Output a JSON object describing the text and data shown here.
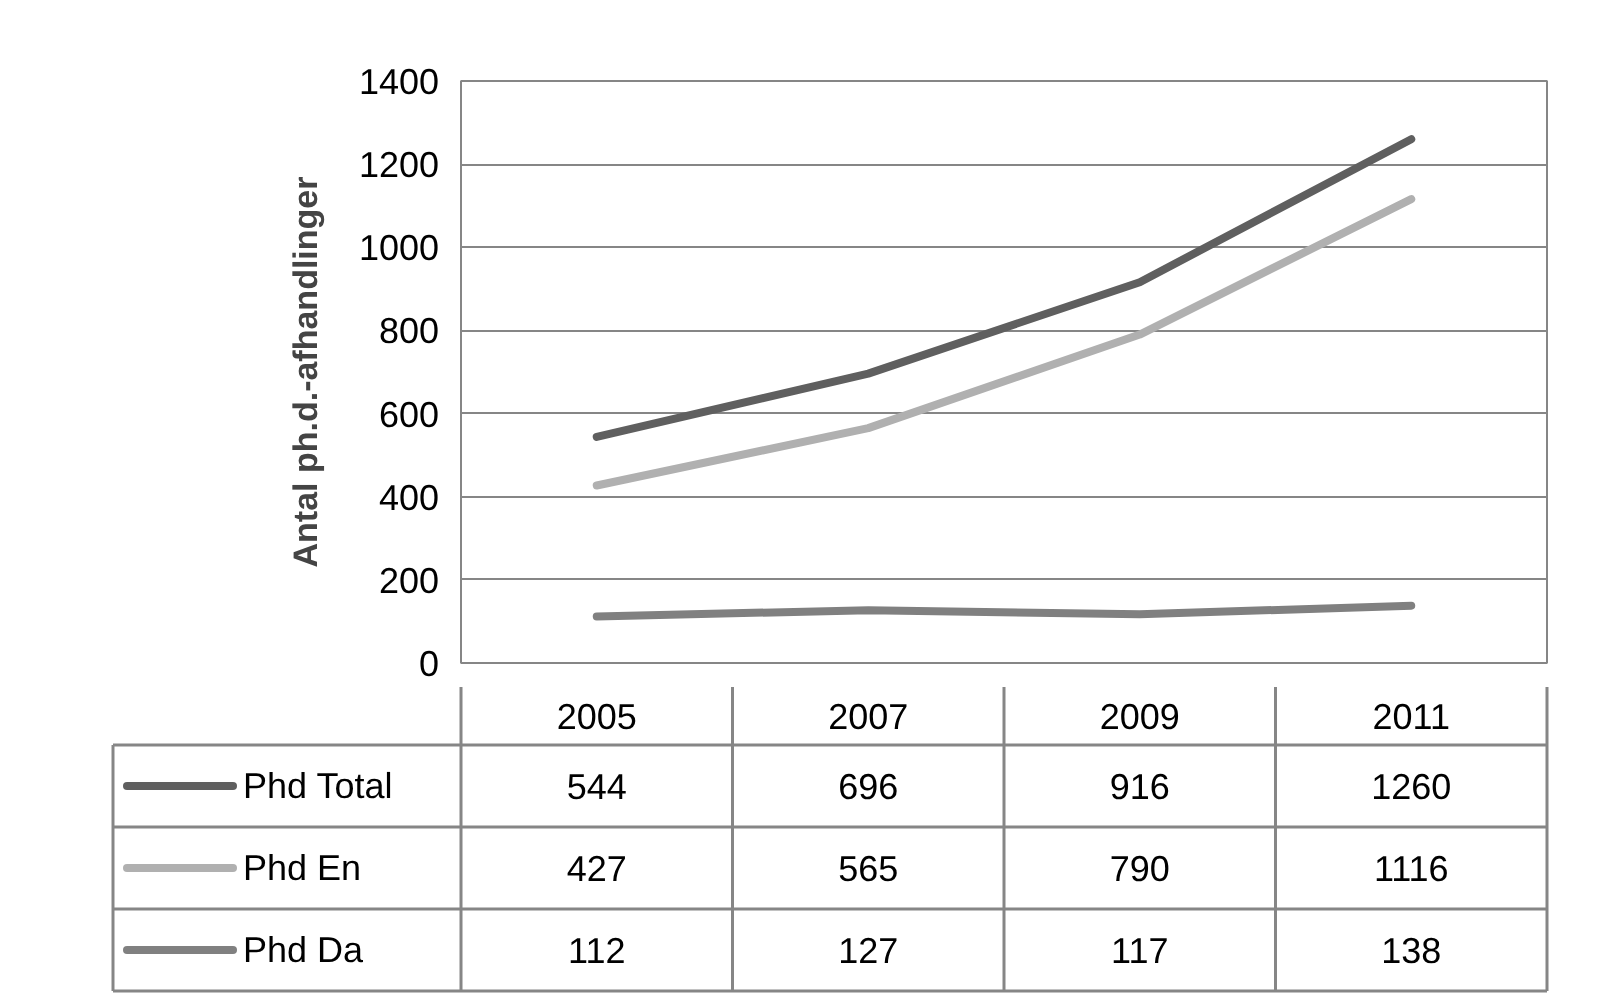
{
  "chart_data": {
    "type": "line",
    "ylabel": "Antal ph.d.-afhandlinger",
    "categories": [
      "2005",
      "2007",
      "2009",
      "2011"
    ],
    "series": [
      {
        "name": "Phd Total",
        "color": "#5f5f5f",
        "values": [
          544,
          696,
          916,
          1260
        ]
      },
      {
        "name": "Phd En",
        "color": "#b0b0b0",
        "values": [
          427,
          565,
          790,
          1116
        ]
      },
      {
        "name": "Phd Da",
        "color": "#808080",
        "values": [
          112,
          127,
          117,
          138
        ]
      }
    ],
    "ylim": [
      0,
      1400
    ],
    "yticks": [
      0,
      200,
      400,
      600,
      800,
      1000,
      1200,
      1400
    ],
    "grid": "y",
    "legend": "bottom",
    "data_labels": true
  }
}
